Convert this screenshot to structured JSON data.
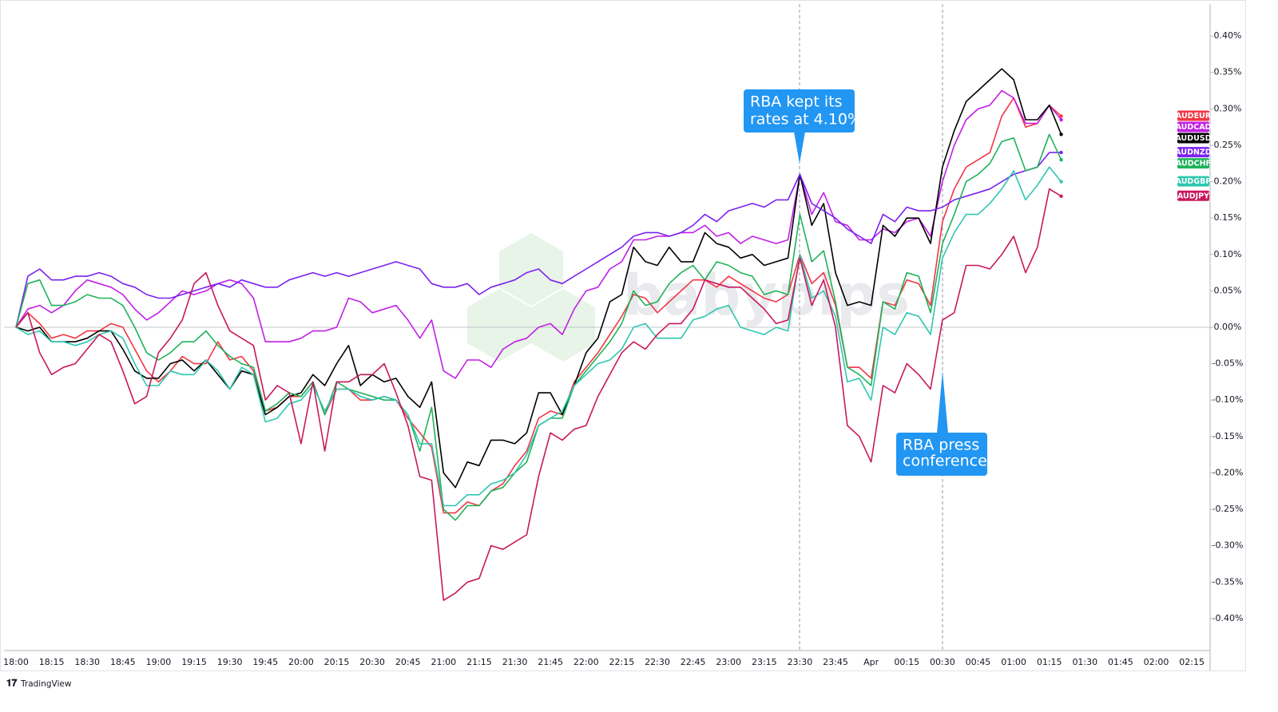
{
  "chart_data": {
    "type": "line",
    "categories": [
      "18:00",
      null,
      null,
      "18:15",
      null,
      null,
      "18:30",
      null,
      null,
      "18:45",
      null,
      null,
      "19:00",
      null,
      null,
      "19:15",
      null,
      null,
      "19:30",
      null,
      null,
      "19:45",
      null,
      null,
      "20:00",
      null,
      null,
      "20:15",
      null,
      null,
      "20:30",
      null,
      null,
      "20:45",
      null,
      null,
      "21:00",
      null,
      null,
      "21:15",
      null,
      null,
      "21:30",
      null,
      null,
      "21:45",
      null,
      null,
      "22:00",
      null,
      null,
      "22:15",
      null,
      null,
      "22:30",
      null,
      null,
      "22:45",
      null,
      null,
      "23:00",
      null,
      null,
      "23:15",
      null,
      null,
      "23:30",
      null,
      null,
      "23:45",
      null,
      null,
      "Apr",
      null,
      null,
      "00:15",
      null,
      null,
      "00:30",
      null,
      null,
      "00:45",
      null,
      null,
      "01:00",
      null,
      null,
      "01:15",
      null,
      null,
      "01:30",
      null,
      null,
      "01:45",
      null,
      null,
      "02:00",
      null,
      null,
      "02:15"
    ],
    "ylim": [
      -0.444,
      0.444
    ],
    "yticks": [
      {
        "value": -0.4,
        "label": "-0.40%"
      },
      {
        "value": -0.35,
        "label": "-0.35%"
      },
      {
        "value": -0.3,
        "label": "-0.30%"
      },
      {
        "value": -0.25,
        "label": "-0.25%"
      },
      {
        "value": -0.2,
        "label": "-0.20%"
      },
      {
        "value": -0.15,
        "label": "-0.15%"
      },
      {
        "value": -0.1,
        "label": "-0.10%"
      },
      {
        "value": -0.05,
        "label": "-0.05%"
      },
      {
        "value": 0,
        "label": "0.00%"
      },
      {
        "value": 0.05,
        "label": "0.05%"
      },
      {
        "value": 0.1,
        "label": "0.10%"
      },
      {
        "value": 0.15,
        "label": "0.15%"
      },
      {
        "value": 0.2,
        "label": "0.20%"
      },
      {
        "value": 0.25,
        "label": "0.25%"
      },
      {
        "value": 0.3,
        "label": "0.30%"
      },
      {
        "value": 0.35,
        "label": "0.35%"
      },
      {
        "value": 0.4,
        "label": "0.40%"
      }
    ],
    "series": [
      {
        "name": "AUDEUR",
        "color": "#f23645",
        "values": [
          0,
          0.02,
          0.005,
          -0.015,
          -0.01,
          -0.015,
          -0.005,
          -0.005,
          0.005,
          0,
          -0.03,
          -0.06,
          -0.075,
          -0.06,
          -0.04,
          -0.05,
          -0.05,
          -0.02,
          -0.045,
          -0.04,
          -0.06,
          -0.115,
          -0.11,
          -0.095,
          -0.095,
          -0.075,
          -0.12,
          -0.085,
          -0.085,
          -0.1,
          -0.1,
          -0.095,
          -0.1,
          -0.125,
          -0.145,
          -0.165,
          -0.255,
          -0.255,
          -0.24,
          -0.245,
          -0.225,
          -0.215,
          -0.19,
          -0.17,
          -0.125,
          -0.115,
          -0.12,
          -0.075,
          -0.055,
          -0.035,
          -0.01,
          0.015,
          0.045,
          0.04,
          0.02,
          0.035,
          0.05,
          0.065,
          0.065,
          0.055,
          0.07,
          0.06,
          0.05,
          0.04,
          0.035,
          0.045,
          0.1,
          0.06,
          0.075,
          0.03,
          -0.055,
          -0.055,
          -0.07,
          0.035,
          0.03,
          0.065,
          0.06,
          0.03,
          0.145,
          0.19,
          0.22,
          0.23,
          0.24,
          0.29,
          0.315,
          0.275,
          0.28,
          0.305,
          0.29,
          null,
          null,
          null,
          null,
          null,
          null,
          null,
          null,
          null,
          null,
          null
        ]
      },
      {
        "name": "AUDCAD",
        "color": "#c21fe6",
        "values": [
          0,
          0.025,
          0.03,
          0.02,
          0.03,
          0.05,
          0.065,
          0.06,
          0.055,
          0.045,
          0.025,
          0.01,
          0.02,
          0.035,
          0.05,
          0.045,
          0.05,
          0.06,
          0.065,
          0.06,
          0.04,
          -0.02,
          -0.02,
          -0.02,
          -0.015,
          -0.005,
          -0.005,
          0,
          0.04,
          0.035,
          0.02,
          0.025,
          0.03,
          0.01,
          -0.015,
          0.01,
          -0.06,
          -0.07,
          -0.045,
          -0.045,
          -0.055,
          -0.03,
          -0.02,
          -0.015,
          0,
          0.005,
          -0.01,
          0.025,
          0.05,
          0.055,
          0.08,
          0.09,
          0.12,
          0.12,
          0.125,
          0.125,
          0.13,
          0.13,
          0.14,
          0.125,
          0.13,
          0.115,
          0.125,
          0.12,
          0.115,
          0.12,
          0.21,
          0.155,
          0.185,
          0.145,
          0.14,
          0.12,
          0.12,
          0.135,
          0.13,
          0.145,
          0.15,
          0.125,
          0.2,
          0.25,
          0.285,
          0.3,
          0.305,
          0.325,
          0.315,
          0.28,
          0.28,
          0.305,
          0.285,
          null,
          null,
          null,
          null,
          null,
          null,
          null,
          null,
          null,
          null,
          null
        ]
      },
      {
        "name": "AUDUSD",
        "color": "#000000",
        "values": [
          0,
          -0.005,
          0,
          -0.02,
          -0.02,
          -0.02,
          -0.015,
          -0.005,
          -0.005,
          -0.03,
          -0.06,
          -0.07,
          -0.07,
          -0.05,
          -0.045,
          -0.06,
          -0.045,
          -0.065,
          -0.085,
          -0.06,
          -0.065,
          -0.12,
          -0.11,
          -0.095,
          -0.09,
          -0.065,
          -0.08,
          -0.05,
          -0.025,
          -0.08,
          -0.065,
          -0.075,
          -0.07,
          -0.095,
          -0.11,
          -0.075,
          -0.2,
          -0.22,
          -0.185,
          -0.19,
          -0.155,
          -0.155,
          -0.16,
          -0.145,
          -0.09,
          -0.09,
          -0.12,
          -0.08,
          -0.035,
          -0.015,
          0.035,
          0.045,
          0.11,
          0.09,
          0.085,
          0.11,
          0.09,
          0.09,
          0.13,
          0.115,
          0.11,
          0.095,
          0.1,
          0.085,
          0.09,
          0.095,
          0.21,
          0.14,
          0.17,
          0.075,
          0.03,
          0.035,
          0.03,
          0.14,
          0.125,
          0.15,
          0.15,
          0.115,
          0.22,
          0.27,
          0.31,
          0.325,
          0.34,
          0.355,
          0.34,
          0.285,
          0.285,
          0.305,
          0.265,
          null,
          null,
          null,
          null,
          null,
          null,
          null,
          null,
          null,
          null,
          null
        ]
      },
      {
        "name": "AUDNZD",
        "color": "#7a22f0",
        "values": [
          0,
          0.07,
          0.08,
          0.065,
          0.065,
          0.07,
          0.07,
          0.075,
          0.07,
          0.06,
          0.055,
          0.045,
          0.04,
          0.04,
          0.045,
          0.05,
          0.055,
          0.06,
          0.055,
          0.065,
          0.06,
          0.055,
          0.055,
          0.065,
          0.07,
          0.075,
          0.07,
          0.075,
          0.07,
          0.075,
          0.08,
          0.085,
          0.09,
          0.085,
          0.08,
          0.06,
          0.055,
          0.055,
          0.06,
          0.045,
          0.055,
          0.06,
          0.065,
          0.075,
          0.08,
          0.065,
          0.06,
          0.07,
          0.08,
          0.09,
          0.1,
          0.11,
          0.125,
          0.13,
          0.13,
          0.125,
          0.13,
          0.14,
          0.155,
          0.145,
          0.16,
          0.165,
          0.17,
          0.165,
          0.175,
          0.175,
          0.21,
          0.17,
          0.16,
          0.15,
          0.135,
          0.125,
          0.115,
          0.155,
          0.145,
          0.165,
          0.16,
          0.16,
          0.165,
          0.175,
          0.18,
          0.185,
          0.19,
          0.2,
          0.21,
          0.215,
          0.22,
          0.24,
          0.24,
          null,
          null,
          null,
          null,
          null,
          null,
          null,
          null,
          null,
          null,
          null
        ]
      },
      {
        "name": "AUDCHF",
        "color": "#1fb25a",
        "values": [
          0,
          0.06,
          0.065,
          0.03,
          0.03,
          0.035,
          0.045,
          0.04,
          0.04,
          0.03,
          0,
          -0.035,
          -0.045,
          -0.035,
          -0.02,
          -0.02,
          -0.005,
          -0.025,
          -0.04,
          -0.05,
          -0.055,
          -0.115,
          -0.105,
          -0.09,
          -0.095,
          -0.075,
          -0.12,
          -0.075,
          -0.085,
          -0.09,
          -0.095,
          -0.1,
          -0.1,
          -0.12,
          -0.17,
          -0.11,
          -0.25,
          -0.265,
          -0.245,
          -0.245,
          -0.225,
          -0.22,
          -0.2,
          -0.185,
          -0.135,
          -0.125,
          -0.125,
          -0.08,
          -0.06,
          -0.04,
          -0.02,
          0.005,
          0.05,
          0.03,
          0.035,
          0.06,
          0.075,
          0.085,
          0.065,
          0.09,
          0.085,
          0.075,
          0.07,
          0.045,
          0.05,
          0.045,
          0.155,
          0.09,
          0.105,
          0.035,
          -0.055,
          -0.065,
          -0.08,
          0.035,
          0.025,
          0.075,
          0.07,
          0.02,
          0.115,
          0.155,
          0.2,
          0.21,
          0.225,
          0.255,
          0.26,
          0.215,
          0.22,
          0.265,
          0.23,
          null,
          null,
          null,
          null,
          null,
          null,
          null,
          null,
          null,
          null,
          null
        ]
      },
      {
        "name": "AUDGBP",
        "color": "#2ec7b0",
        "values": [
          0,
          -0.01,
          -0.005,
          -0.02,
          -0.02,
          -0.025,
          -0.02,
          -0.01,
          -0.005,
          -0.015,
          -0.05,
          -0.08,
          -0.08,
          -0.06,
          -0.065,
          -0.065,
          -0.045,
          -0.06,
          -0.085,
          -0.055,
          -0.065,
          -0.13,
          -0.125,
          -0.105,
          -0.1,
          -0.08,
          -0.115,
          -0.085,
          -0.085,
          -0.095,
          -0.1,
          -0.095,
          -0.1,
          -0.12,
          -0.16,
          -0.16,
          -0.245,
          -0.245,
          -0.23,
          -0.23,
          -0.215,
          -0.21,
          -0.2,
          -0.175,
          -0.135,
          -0.125,
          -0.115,
          -0.08,
          -0.065,
          -0.05,
          -0.045,
          -0.03,
          0,
          0.005,
          -0.015,
          -0.015,
          -0.015,
          0.01,
          0.015,
          0.025,
          0.03,
          0,
          -0.005,
          -0.01,
          0,
          -0.005,
          0.1,
          0.04,
          0.05,
          0.015,
          -0.075,
          -0.07,
          -0.1,
          0,
          -0.01,
          0.02,
          0.015,
          -0.01,
          0.095,
          0.13,
          0.155,
          0.155,
          0.17,
          0.19,
          0.215,
          0.175,
          0.195,
          0.22,
          0.2,
          null,
          null,
          null,
          null,
          null,
          null,
          null,
          null,
          null,
          null,
          null
        ]
      },
      {
        "name": "AUDJPY",
        "color": "#c8185c",
        "values": [
          0,
          0.02,
          -0.035,
          -0.065,
          -0.055,
          -0.05,
          -0.03,
          -0.01,
          -0.02,
          -0.06,
          -0.105,
          -0.095,
          -0.035,
          -0.015,
          0.01,
          0.06,
          0.075,
          0.03,
          -0.005,
          -0.015,
          -0.025,
          -0.1,
          -0.08,
          -0.09,
          -0.16,
          -0.075,
          -0.17,
          -0.075,
          -0.075,
          -0.065,
          -0.065,
          -0.05,
          -0.09,
          -0.135,
          -0.205,
          -0.21,
          -0.375,
          -0.365,
          -0.35,
          -0.345,
          -0.3,
          -0.305,
          -0.295,
          -0.285,
          -0.205,
          -0.145,
          -0.155,
          -0.14,
          -0.135,
          -0.095,
          -0.065,
          -0.035,
          -0.02,
          -0.03,
          -0.01,
          0.005,
          0.005,
          0.025,
          0.065,
          0.06,
          0.055,
          0.055,
          0.04,
          0.025,
          0.005,
          0.01,
          0.095,
          0.03,
          0.065,
          0,
          -0.135,
          -0.15,
          -0.185,
          -0.08,
          -0.09,
          -0.05,
          -0.065,
          -0.085,
          0.01,
          0.02,
          0.085,
          0.085,
          0.08,
          0.1,
          0.125,
          0.075,
          0.11,
          0.19,
          0.18,
          null,
          null,
          null,
          null,
          null,
          null,
          null,
          null,
          null,
          null,
          null
        ]
      }
    ],
    "annotations": [
      {
        "lines": [
          "RBA kept its",
          "rates at 4.10%"
        ]
      },
      {
        "lines": [
          "RBA press",
          "conference"
        ]
      }
    ],
    "watermark": "babypips",
    "footer": "TradingView"
  }
}
